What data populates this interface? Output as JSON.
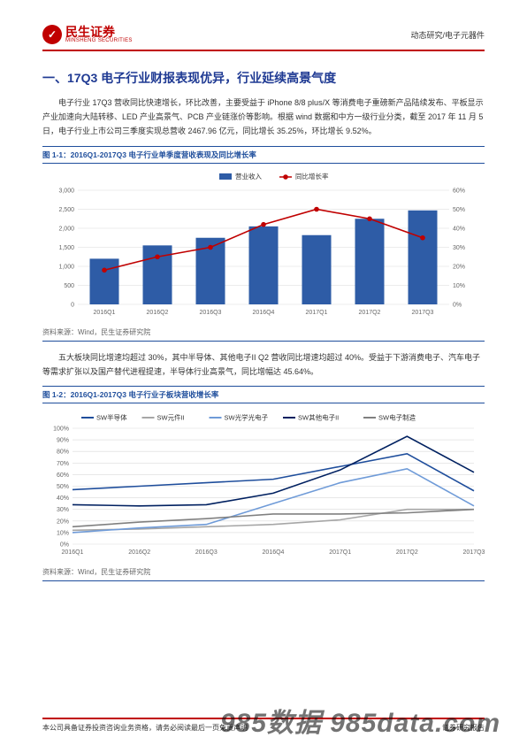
{
  "header": {
    "logo_cn": "民生证券",
    "logo_en": "MINSHENG SECURITIES",
    "logo_glyph": "✓",
    "right_text": "动态研究/电子元器件"
  },
  "section_title": "一、17Q3 电子行业财报表现优异，行业延续高景气度",
  "paragraph1": "电子行业 17Q3 营收同比快速增长，环比改善，主要受益于 iPhone 8/8 plus/X 等消费电子重磅新产品陆续发布、平板显示产业加速向大陆转移、LED 产业高景气、PCB 产业链涨价等影响。根据 wind 数据和中方一级行业分类，截至 2017 年 11 月 5 日，电子行业上市公司三季度实现总营收 2467.96 亿元，同比增长 35.25%，环比增长 9.52%。",
  "figure1": {
    "caption": "图 1-1：2016Q1-2017Q3 电子行业单季度营收表现及同比增长率",
    "source": "资料来源：Wind，民生证券研究院",
    "type": "bar_line_combo",
    "categories": [
      "2016Q1",
      "2016Q2",
      "2016Q3",
      "2016Q4",
      "2017Q1",
      "2017Q2",
      "2017Q3"
    ],
    "legend": {
      "bar": "营业收入",
      "line": "同比增长率"
    },
    "bar_values": [
      1200,
      1550,
      1750,
      2050,
      1820,
      2250,
      2470
    ],
    "line_values_pct": [
      18,
      25,
      30,
      42,
      50,
      45,
      35
    ],
    "y_left": {
      "min": 0,
      "max": 3000,
      "step": 500,
      "label": ""
    },
    "y_right": {
      "min": 0,
      "max": 60,
      "step": 10,
      "suffix": "%"
    },
    "bar_color": "#2e5ca6",
    "line_color": "#c00000",
    "marker_color": "#c00000",
    "grid_color": "#d9d9d9",
    "bg_color": "#ffffff",
    "axis_fontsize": 7,
    "legend_fontsize": 7.5,
    "bar_width": 0.55
  },
  "paragraph2": "五大板块同比增速均超过 30%，其中半导体、其他电子II Q2 营收同比增速均超过 40%。受益于下游消费电子、汽车电子等需求扩张以及国产替代进程提速，半导体行业高景气，同比增幅达 45.64%。",
  "figure2": {
    "caption": "图 1-2：2016Q1-2017Q3 电子行业子板块营收增长率",
    "source": "资料来源：Wind，民生证券研究院",
    "type": "multi_line",
    "categories": [
      "2016Q1",
      "2016Q2",
      "2016Q3",
      "2016Q4",
      "2017Q1",
      "2017Q2",
      "2017Q3"
    ],
    "y": {
      "min": 0,
      "max": 100,
      "step": 10,
      "suffix": "%"
    },
    "series": [
      {
        "name": "SW半导体",
        "color": "#1f4e9c",
        "values": [
          47,
          50,
          53,
          56,
          67,
          78,
          46
        ]
      },
      {
        "name": "SW元件II",
        "color": "#a6a6a6",
        "values": [
          12,
          13,
          15,
          17,
          21,
          30,
          30
        ]
      },
      {
        "name": "SW光学光电子",
        "color": "#6f9bd8",
        "values": [
          10,
          14,
          17,
          35,
          53,
          65,
          33
        ]
      },
      {
        "name": "SW其他电子II",
        "color": "#002060",
        "values": [
          34,
          33,
          34,
          44,
          64,
          93,
          62
        ]
      },
      {
        "name": "SW电子制造",
        "color": "#808080",
        "values": [
          15,
          19,
          22,
          26,
          26,
          27,
          30
        ]
      }
    ],
    "grid_color": "#d9d9d9",
    "bg_color": "#ffffff",
    "axis_fontsize": 7,
    "legend_fontsize": 7.5,
    "line_width": 1.6
  },
  "footer": {
    "left": "本公司具备证券投资咨询业务资格，请务必阅读最后一页免责声明",
    "right": "证券研究报告"
  },
  "watermark": "985数据 985data.com"
}
